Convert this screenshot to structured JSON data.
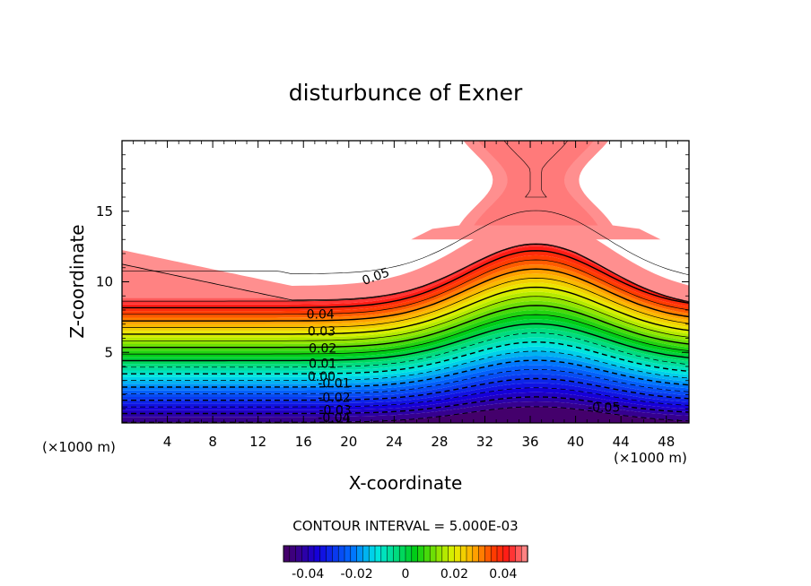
{
  "chart_data": {
    "type": "heatmap",
    "title": "disturbunce of Exner",
    "xlabel": "X-coordinate",
    "ylabel": "Z-coordinate",
    "x_unit_left": "(×1000 m)",
    "x_unit_right": "(×1000 m)",
    "xlim": [
      0,
      50
    ],
    "ylim": [
      0,
      20
    ],
    "x_ticks": [
      4,
      8,
      12,
      16,
      20,
      24,
      28,
      32,
      36,
      40,
      44,
      48
    ],
    "y_ticks": [
      5,
      10,
      15
    ],
    "contour_interval_label": "CONTOUR INTERVAL = 5.000E-03",
    "colorbar": {
      "range": [
        -0.05,
        0.05
      ],
      "ticks": [
        -0.04,
        -0.02,
        0,
        0.02,
        0.04
      ],
      "tick_labels": [
        "-0.04",
        "-0.02",
        "0",
        "0.02",
        "0.04"
      ]
    },
    "contour_labels": [
      {
        "text": "0.05",
        "x": 22.5,
        "z": 10.1
      },
      {
        "text": "0.04",
        "x": 17.5,
        "z": 7.4
      },
      {
        "text": "0.03",
        "x": 17.6,
        "z": 6.2
      },
      {
        "text": "0.02",
        "x": 17.7,
        "z": 5.0
      },
      {
        "text": "0.01",
        "x": 17.7,
        "z": 3.9
      },
      {
        "text": "0.00",
        "x": 17.6,
        "z": 3.0
      },
      {
        "text": "-0.01",
        "x": 18.7,
        "z": 2.5
      },
      {
        "text": "-0.02",
        "x": 18.7,
        "z": 1.5
      },
      {
        "text": "-0.03",
        "x": 18.8,
        "z": 0.6
      },
      {
        "text": "-0.04",
        "x": 18.7,
        "z": 0.05
      },
      {
        "text": "-0.05",
        "x": 42.5,
        "z": 0.8
      }
    ]
  }
}
